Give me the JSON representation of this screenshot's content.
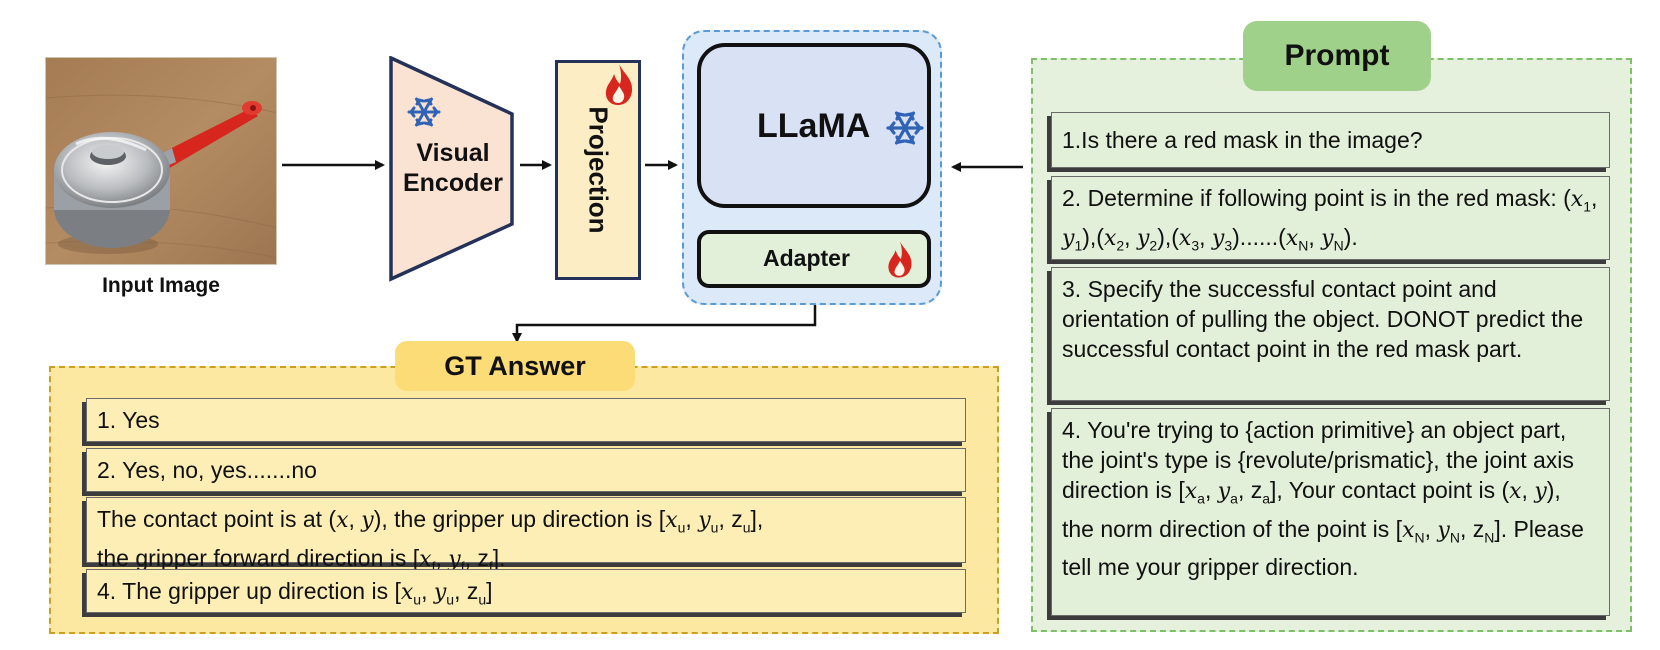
{
  "input_image": {
    "caption": "Input Image"
  },
  "visual_encoder": {
    "line1": "Visual",
    "line2": "Encoder",
    "icon": "snowflake-icon"
  },
  "projection": {
    "label": "Projection",
    "icon": "flame-icon"
  },
  "llama": {
    "label": "LLaMA",
    "icon": "snowflake-icon"
  },
  "adapter": {
    "label": "Adapter",
    "icon": "flame-icon"
  },
  "gt_answer": {
    "title": "GT Answer",
    "items": [
      "1. Yes",
      "2. Yes, no, yes.......no",
      "3. The contact point is at (x, y), the gripper up direction is [xu, yu, zu], the gripper forward direction is [xf, yf, zf].",
      "4. The gripper up direction is [xu, yu, zu]"
    ]
  },
  "prompt": {
    "title": "Prompt",
    "items": [
      "1.Is there a red mask in the image?",
      "2. Determine if following point is in the red mask: (x1, y1),(x2, y2),(x3, y3)......(xN, yN).",
      "3. Specify the successful contact point and orientation of pulling the object. DONOT predict the successful contact point in the red mask part.",
      "4. You're trying to {action primitive} an object part, the joint's type is {revolute/prismatic}, the joint axis direction is [xa, ya, za], Your contact point is (x, y), the norm direction of the point is [xN, yN, zN]. Please tell me your gripper direction."
    ]
  },
  "colors": {
    "encoder_fill": "#fbe3d4",
    "projection_fill": "#fdedc4",
    "llama_fill": "#d9e2f5",
    "adapter_fill": "#e2efd9",
    "gt_panel": "#fde8a2",
    "gt_title": "#fcdc76",
    "prompt_panel": "#e6f1dd",
    "prompt_title": "#9fd18a",
    "snowflake": "#2f63b5",
    "flame": "#d7261e"
  }
}
